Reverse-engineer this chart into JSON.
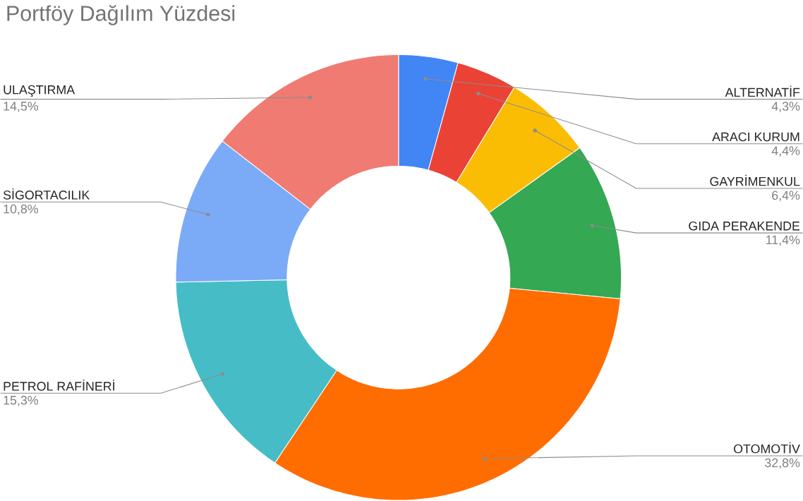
{
  "chart_data": {
    "type": "donut",
    "title": "Portföy Dağılım Yüzdesi",
    "categories": [
      "ALTERNATİF",
      "ARACI KURUM",
      "GAYRİMENKUL",
      "GIDA PERAKENDE",
      "OTOMOTİV",
      "PETROL RAFİNERİ",
      "SİGORTACILIK",
      "ULAŞTIRMA"
    ],
    "values": [
      4.3,
      4.4,
      6.4,
      11.4,
      32.8,
      15.3,
      10.8,
      14.5
    ],
    "value_labels": [
      "4,3%",
      "4,4%",
      "6,4%",
      "11,4%",
      "32,8%",
      "15,3%",
      "10,8%",
      "14,5%"
    ],
    "colors": [
      "#4285f4",
      "#ea4335",
      "#fbbc04",
      "#34a853",
      "#ff6d01",
      "#46bdc6",
      "#7baaf7",
      "#f07b72"
    ]
  }
}
